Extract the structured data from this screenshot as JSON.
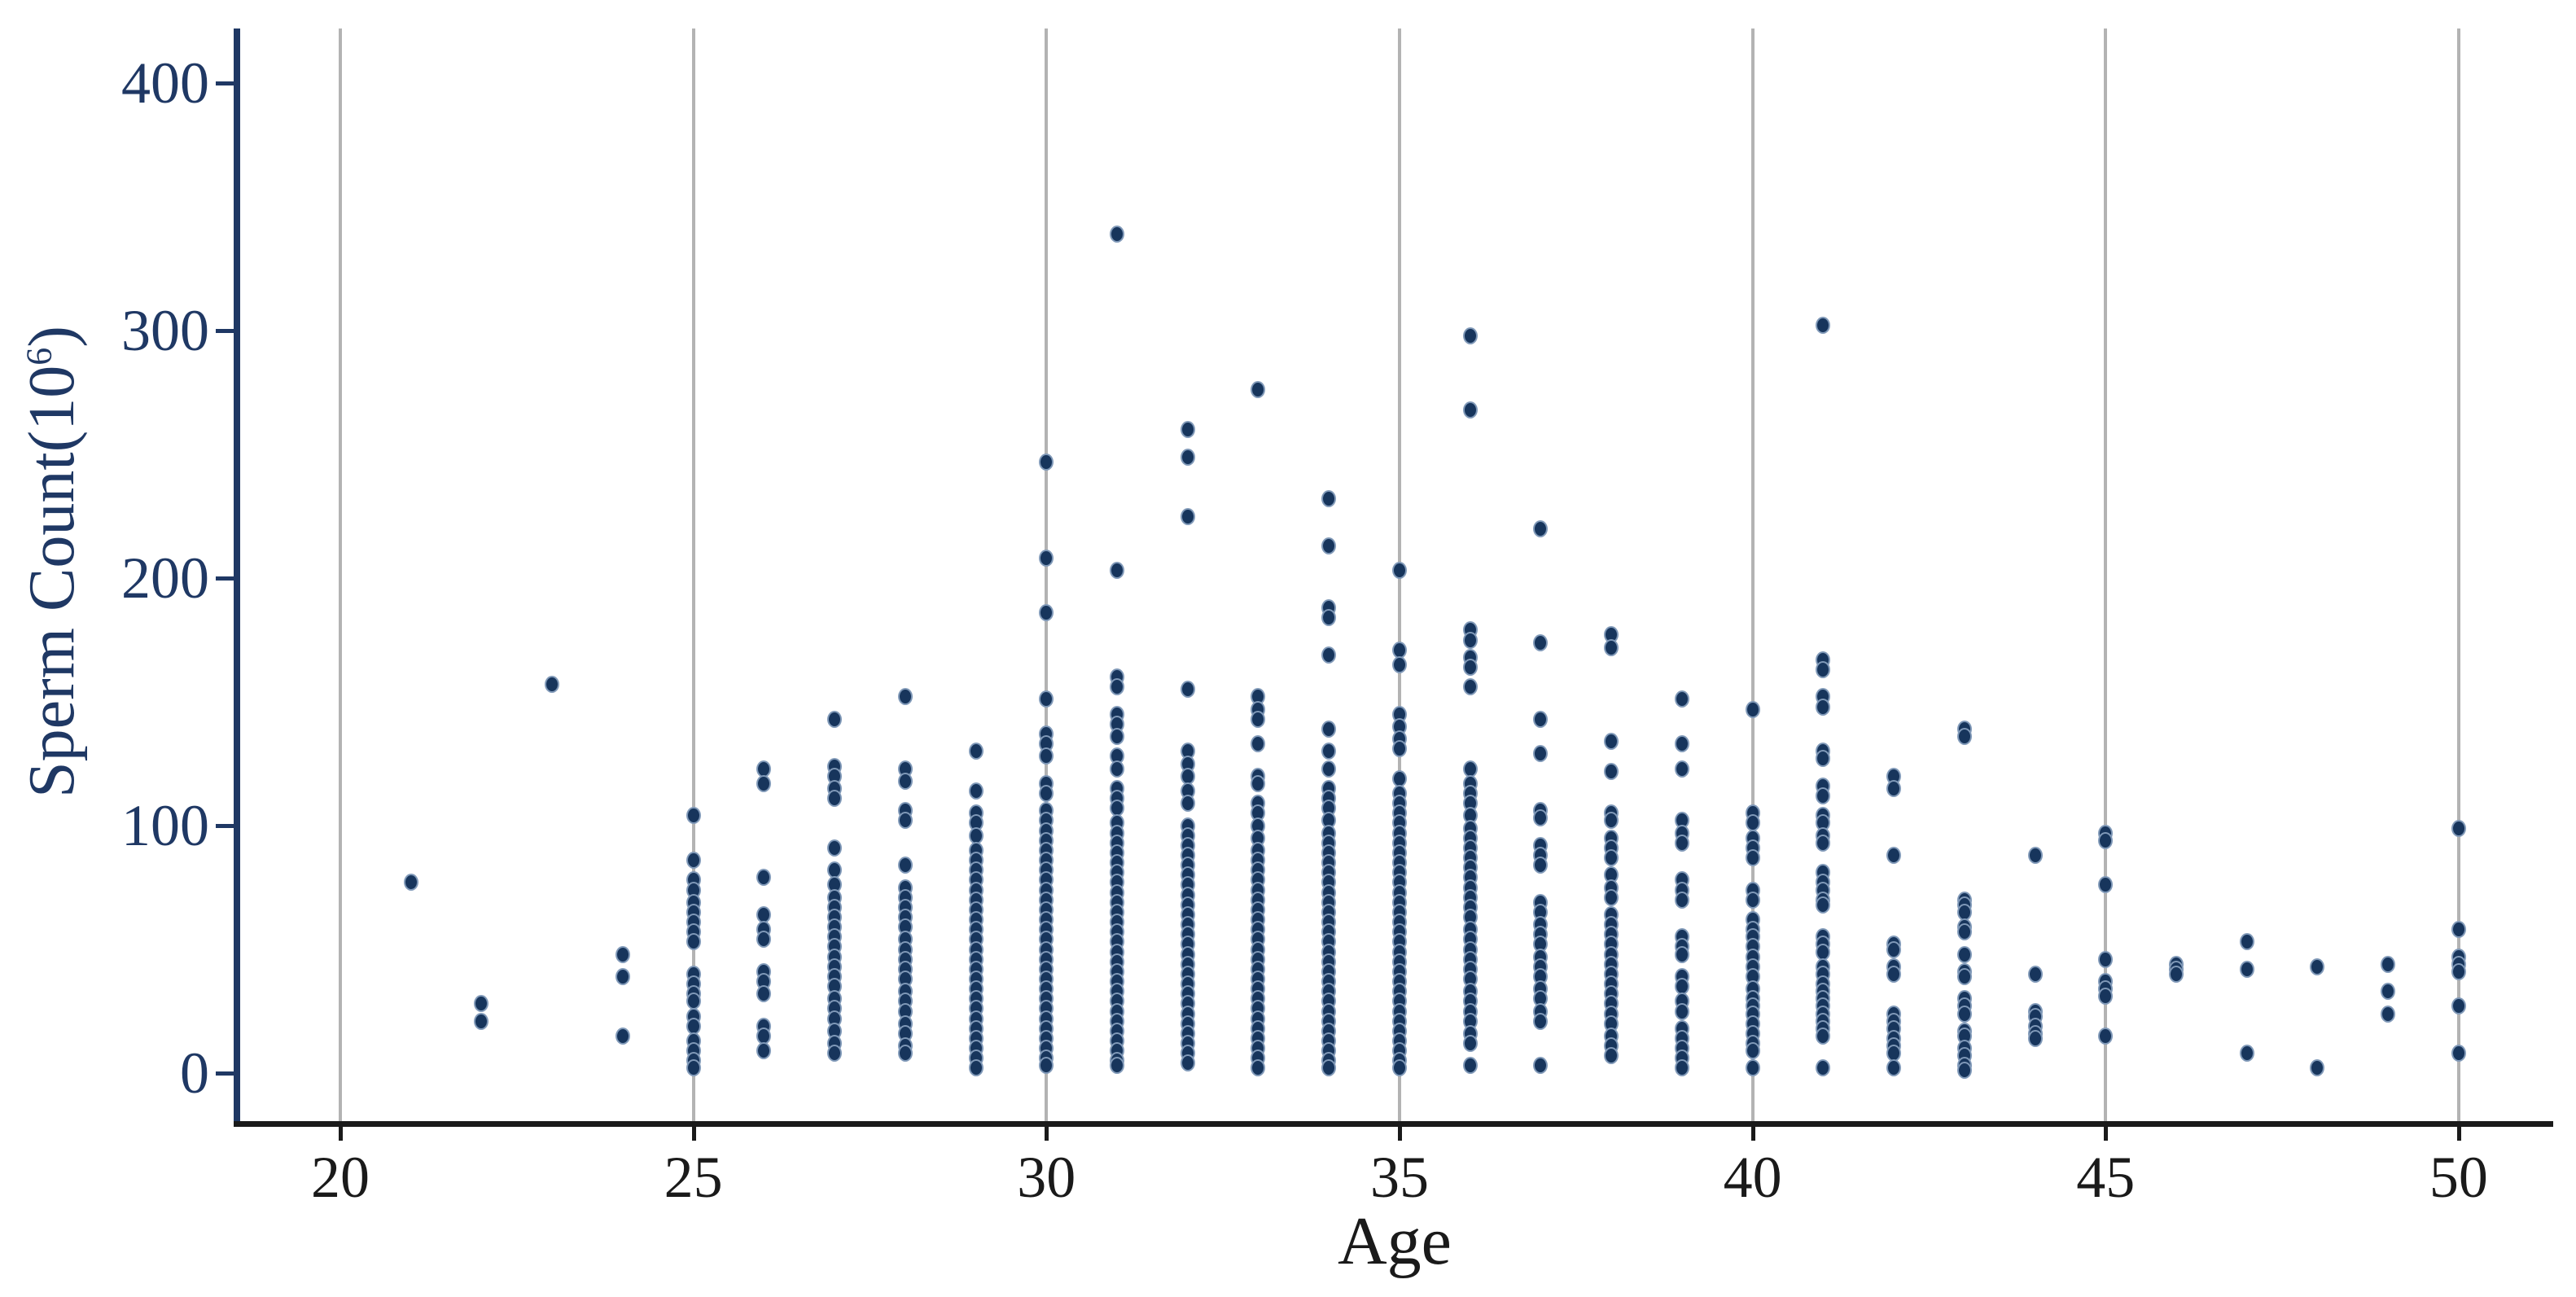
{
  "figure": {
    "background": "#FFFFFF",
    "colors": {
      "marker": "#17355C",
      "marker_halo": "#8099B8",
      "navy_axis": "#1F3864",
      "dark_axis": "#1A1A1A",
      "gridline": "#B3B3B3"
    }
  },
  "chart_data": {
    "type": "scatter",
    "title": "",
    "xlabel": "Age",
    "ylabel": "Sperm Count(10⁶)",
    "ylabel_main": "Sperm Count(10",
    "ylabel_sup": "6",
    "ylabel_end": ")",
    "x_ticks": [
      20,
      25,
      30,
      35,
      40,
      45,
      50
    ],
    "y_ticks": [
      0,
      100,
      200,
      300,
      400
    ],
    "xlim": [
      18.5,
      51.3
    ],
    "ylim": [
      -20,
      422
    ],
    "grid": "vertical-gridlines-at-x-ticks",
    "legend": "none",
    "series": [
      {
        "name": "sperm-count-by-age",
        "columns": [
          {
            "age": 21,
            "values": [
              77
            ]
          },
          {
            "age": 22,
            "values": [
              28,
              21
            ]
          },
          {
            "age": 23,
            "values": [
              157
            ]
          },
          {
            "age": 24,
            "values": [
              48,
              39,
              15
            ]
          },
          {
            "age": 25,
            "values": [
              104,
              86,
              78,
              74,
              69,
              65,
              61,
              57,
              53,
              40,
              36,
              32,
              29,
              23,
              19,
              13,
              9,
              5,
              2
            ]
          },
          {
            "age": 26,
            "values": [
              123,
              117,
              79,
              64,
              58,
              54,
              41,
              37,
              32,
              19,
              15,
              9
            ]
          },
          {
            "age": 27,
            "values": [
              143,
              124,
              120,
              115,
              111,
              91,
              82,
              76,
              71,
              67,
              63,
              59,
              55,
              51,
              47,
              43,
              39,
              35,
              30,
              26,
              22,
              17,
              12,
              8
            ]
          },
          {
            "age": 28,
            "values": [
              152,
              123,
              118,
              106,
              102,
              84,
              75,
              71,
              67,
              63,
              59,
              54,
              50,
              46,
              42,
              38,
              33,
              29,
              25,
              20,
              16,
              11,
              8
            ]
          },
          {
            "age": 29,
            "values": [
              130,
              114,
              105,
              101,
              96,
              90,
              86,
              82,
              78,
              74,
              70,
              66,
              62,
              58,
              54,
              50,
              46,
              42,
              38,
              34,
              30,
              26,
              22,
              18,
              14,
              10,
              6,
              2
            ]
          },
          {
            "age": 30,
            "values": [
              247,
              208,
              186,
              151,
              137,
              133,
              128,
              117,
              113,
              106,
              102,
              98,
              94,
              90,
              86,
              82,
              78,
              74,
              70,
              66,
              62,
              58,
              54,
              50,
              46,
              42,
              38,
              34,
              30,
              26,
              22,
              18,
              14,
              10,
              6,
              3
            ]
          },
          {
            "age": 31,
            "values": [
              339,
              203,
              160,
              156,
              145,
              141,
              136,
              128,
              123,
              115,
              111,
              107,
              101,
              97,
              93,
              89,
              85,
              81,
              77,
              73,
              69,
              65,
              61,
              57,
              53,
              49,
              45,
              41,
              37,
              33,
              29,
              25,
              21,
              17,
              13,
              9,
              5,
              3
            ]
          },
          {
            "age": 32,
            "values": [
              260,
              249,
              225,
              155,
              130,
              125,
              120,
              114,
              109,
              100,
              96,
              92,
              88,
              84,
              80,
              76,
              72,
              68,
              64,
              60,
              56,
              52,
              48,
              44,
              40,
              36,
              32,
              28,
              24,
              20,
              16,
              12,
              8,
              4
            ]
          },
          {
            "age": 33,
            "values": [
              276,
              152,
              147,
              143,
              133,
              120,
              117,
              109,
              105,
              100,
              95,
              90,
              86,
              82,
              78,
              74,
              70,
              66,
              62,
              58,
              54,
              50,
              46,
              42,
              38,
              34,
              30,
              26,
              22,
              18,
              14,
              10,
              6,
              2
            ]
          },
          {
            "age": 34,
            "values": [
              232,
              213,
              188,
              184,
              169,
              139,
              130,
              123,
              115,
              111,
              107,
              102,
              97,
              93,
              89,
              85,
              81,
              77,
              73,
              69,
              65,
              61,
              57,
              53,
              49,
              45,
              41,
              37,
              33,
              29,
              25,
              21,
              17,
              13,
              9,
              5,
              2
            ]
          },
          {
            "age": 35,
            "values": [
              203,
              171,
              165,
              145,
              140,
              135,
              131,
              119,
              113,
              109,
              105,
              101,
              97,
              93,
              89,
              85,
              81,
              77,
              73,
              69,
              65,
              61,
              57,
              53,
              49,
              45,
              41,
              37,
              33,
              29,
              25,
              21,
              17,
              13,
              9,
              5,
              2
            ]
          },
          {
            "age": 36,
            "values": [
              298,
              268,
              179,
              175,
              168,
              164,
              156,
              123,
              117,
              113,
              109,
              104,
              99,
              95,
              91,
              87,
              83,
              79,
              75,
              71,
              67,
              63,
              58,
              54,
              50,
              46,
              42,
              38,
              33,
              29,
              25,
              21,
              16,
              12,
              3
            ]
          },
          {
            "age": 37,
            "values": [
              220,
              174,
              143,
              129,
              106,
              103,
              92,
              88,
              84,
              69,
              65,
              60,
              56,
              52,
              47,
              43,
              39,
              34,
              30,
              25,
              21,
              3
            ]
          },
          {
            "age": 38,
            "values": [
              177,
              172,
              134,
              122,
              105,
              102,
              95,
              91,
              87,
              80,
              75,
              71,
              64,
              60,
              56,
              52,
              48,
              44,
              40,
              36,
              32,
              28,
              24,
              20,
              15,
              11,
              7
            ]
          },
          {
            "age": 39,
            "values": [
              151,
              133,
              123,
              102,
              97,
              93,
              78,
              74,
              70,
              55,
              51,
              48,
              39,
              35,
              29,
              25,
              18,
              14,
              10,
              6,
              2
            ]
          },
          {
            "age": 40,
            "values": [
              147,
              105,
              101,
              95,
              91,
              87,
              74,
              70,
              62,
              58,
              55,
              51,
              47,
              43,
              39,
              34,
              30,
              27,
              24,
              20,
              16,
              12,
              9,
              2
            ]
          },
          {
            "age": 41,
            "values": [
              302,
              167,
              163,
              152,
              148,
              130,
              127,
              116,
              112,
              104,
              101,
              96,
              93,
              81,
              77,
              74,
              70,
              68,
              55,
              52,
              49,
              43,
              40,
              36,
              33,
              30,
              27,
              24,
              21,
              18,
              15,
              2
            ]
          },
          {
            "age": 42,
            "values": [
              120,
              115,
              88,
              52,
              50,
              43,
              40,
              24,
              21,
              18,
              14,
              11,
              8,
              2
            ]
          },
          {
            "age": 43,
            "values": [
              139,
              136,
              70,
              68,
              65,
              59,
              57,
              48,
              41,
              39,
              30,
              27,
              24,
              17,
              15,
              10,
              7,
              3,
              1
            ]
          },
          {
            "age": 44,
            "values": [
              88,
              40,
              25,
              23,
              19,
              16,
              14
            ]
          },
          {
            "age": 45,
            "values": [
              97,
              94,
              76,
              46,
              37,
              34,
              31,
              15
            ]
          },
          {
            "age": 46,
            "values": [
              44,
              42,
              40
            ]
          },
          {
            "age": 47,
            "values": [
              53,
              42,
              8
            ]
          },
          {
            "age": 48,
            "values": [
              43,
              2
            ]
          },
          {
            "age": 49,
            "values": [
              44,
              33,
              24
            ]
          },
          {
            "age": 50,
            "values": [
              99,
              58,
              47,
              44,
              41,
              27,
              8
            ]
          }
        ]
      }
    ]
  }
}
